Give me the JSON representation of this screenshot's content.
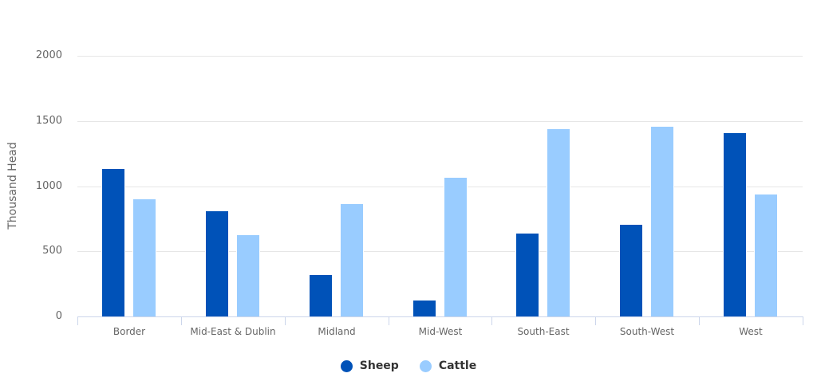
{
  "chart_data": {
    "type": "bar",
    "title": "",
    "xlabel": "",
    "ylabel": "Thousand Head",
    "ylim": [
      0,
      2000
    ],
    "yticks": [
      0,
      500,
      1000,
      1500,
      2000
    ],
    "grid": true,
    "legend_position": "bottom-center",
    "categories": [
      "Border",
      "Mid-East & Dublin",
      "Midland",
      "Mid-West",
      "South-East",
      "South-West",
      "West"
    ],
    "series": [
      {
        "name": "Sheep",
        "color": "#0052b8",
        "values": [
          1139,
          814,
          325,
          129,
          643,
          710,
          1414
        ]
      },
      {
        "name": "Cattle",
        "color": "#99ccff",
        "values": [
          906,
          631,
          870,
          1072,
          1445,
          1463,
          943
        ]
      }
    ]
  },
  "axis": {
    "y_title": "Thousand Head",
    "y_ticks": [
      "2000",
      "1500",
      "1000",
      "500",
      "0"
    ]
  },
  "legend": {
    "items": [
      {
        "label": "Sheep",
        "color": "#0052b8"
      },
      {
        "label": "Cattle",
        "color": "#99ccff"
      }
    ]
  }
}
